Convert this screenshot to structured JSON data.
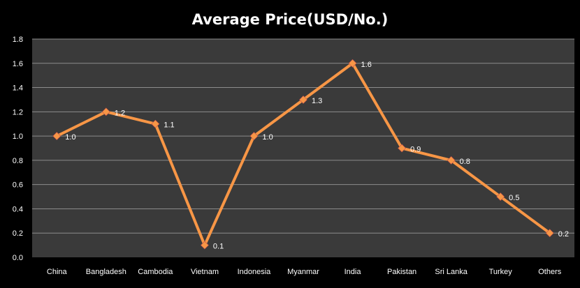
{
  "chart_data": {
    "type": "line",
    "title": "Average Price(USD/No.)",
    "categories": [
      "China",
      "Bangladesh",
      "Cambodia",
      "Vietnam",
      "Indonesia",
      "Myanmar",
      "India",
      "Pakistan",
      "Sri Lanka",
      "Turkey",
      "Others"
    ],
    "series": [
      {
        "values": [
          1.0,
          1.2,
          1.1,
          0.1,
          1.0,
          1.3,
          1.6,
          0.9,
          0.8,
          0.5,
          0.2
        ],
        "labels": [
          "1.0",
          "1.2",
          "1.1",
          "0.1",
          "1.0",
          "1.3",
          "1.6",
          "0.9",
          "0.8",
          "0.5",
          "0.2"
        ]
      }
    ],
    "yticks": [
      "0.0",
      "0.2",
      "0.4",
      "0.6",
      "0.8",
      "1.0",
      "1.2",
      "1.4",
      "1.6",
      "1.8"
    ],
    "ylim": [
      0,
      1.8
    ],
    "grid": true,
    "colors": {
      "background": "#000000",
      "plot_area": "#3a3a3a",
      "gridline": "#8c8c8c",
      "line": "#f79646",
      "marker": "#f79646",
      "text": "#ffffff"
    }
  }
}
